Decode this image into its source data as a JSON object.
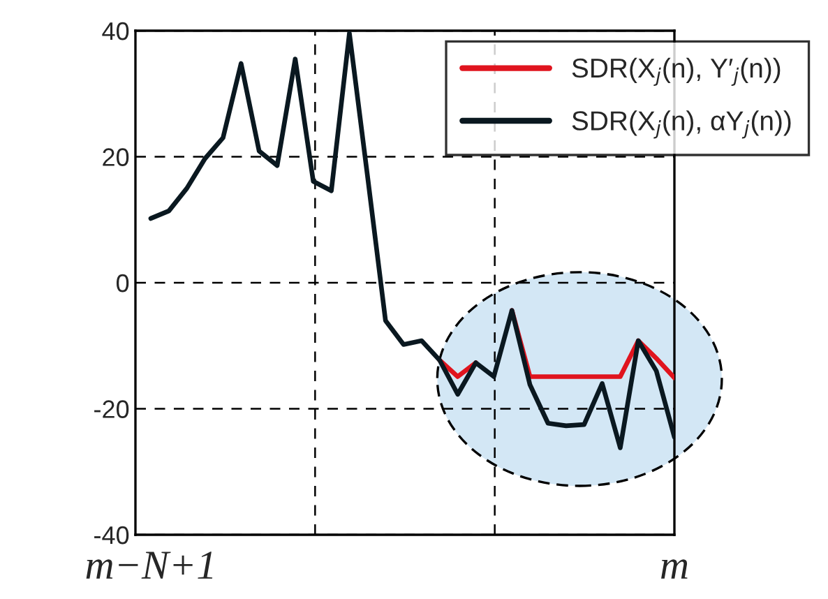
{
  "chart_data": {
    "type": "line",
    "categories": [
      "m−N+1",
      null,
      null,
      null,
      null,
      null,
      null,
      null,
      null,
      null,
      null,
      null,
      null,
      null,
      null,
      null,
      null,
      null,
      null,
      null,
      null,
      null,
      null,
      null,
      null,
      null,
      null,
      null,
      null,
      "m"
    ],
    "series": [
      {
        "name": "SDR(X$_{j}$(n), Y′$_{j}$(n))",
        "color": "#e0141e",
        "values": [
          null,
          null,
          null,
          null,
          null,
          null,
          null,
          null,
          null,
          null,
          null,
          null,
          null,
          null,
          null,
          null,
          -12.3,
          -14.9,
          -12.7,
          null,
          -4.4,
          -14.9,
          -14.9,
          -14.9,
          -14.9,
          -14.9,
          -14.9,
          -9.2,
          -12,
          -15.1
        ]
      },
      {
        "name": "SDR(X$_{j}$(n), αY$_{j}$(n))",
        "color": "#0a1820",
        "values": [
          10.2,
          11.4,
          15,
          19.7,
          23,
          34.8,
          20.9,
          18.6,
          35.5,
          16.1,
          14.6,
          39.6,
          17,
          -6,
          -9.8,
          -9.2,
          -12.3,
          -17.7,
          -12.7,
          -14.9,
          -4.4,
          -16.2,
          -22.3,
          -22.7,
          -22.5,
          -16,
          -26.2,
          -9.2,
          -14,
          -24.5
        ]
      }
    ],
    "ylim": [
      -40,
      40
    ],
    "yticks": [
      -40,
      -20,
      0,
      20,
      40
    ],
    "grid": true,
    "legend": "top right",
    "marker": "none",
    "line_style": "solid"
  }
}
